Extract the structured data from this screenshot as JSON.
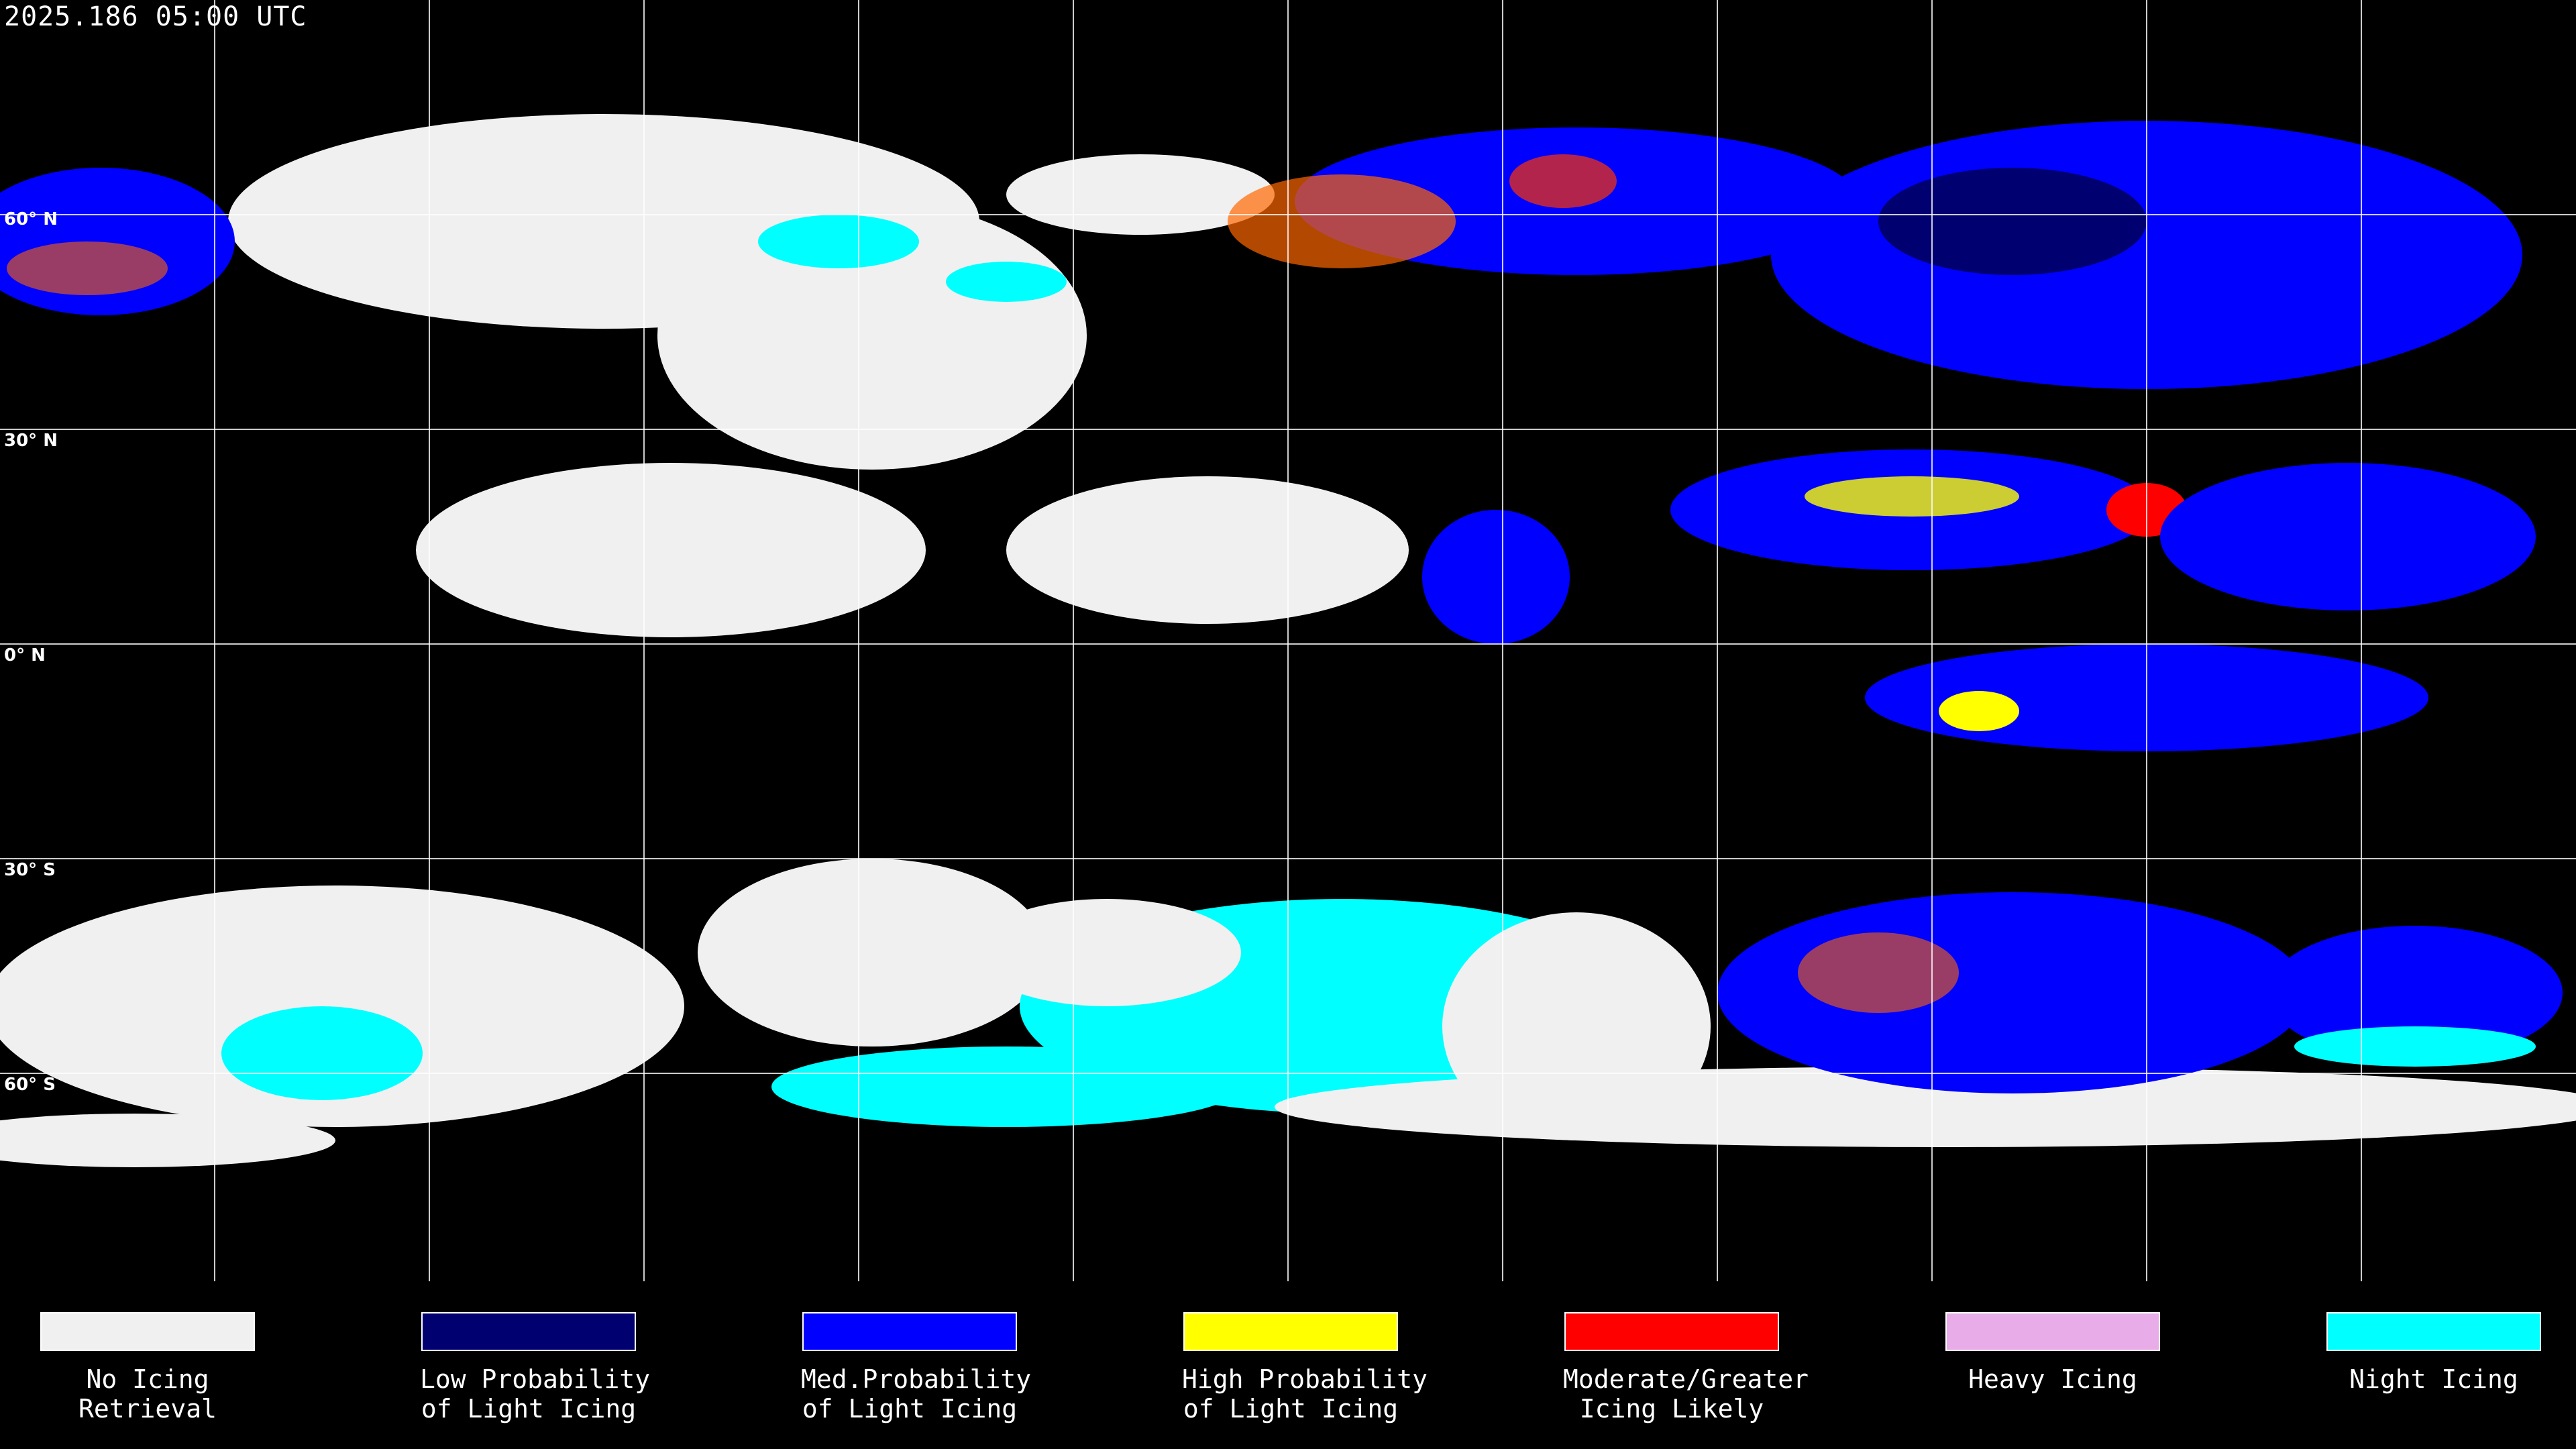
{
  "header": {
    "timestamp": "2025.186 05:00 UTC"
  },
  "map": {
    "latitude_labels": [
      "60° N",
      "30° N",
      "0° N",
      "30° S",
      "60° S"
    ],
    "grid": true,
    "colors": {
      "background": "#000000",
      "grid": "#ffffff"
    }
  },
  "legend": [
    {
      "line1": "No Icing",
      "line2": "Retrieval",
      "color": "#f0f0f0"
    },
    {
      "line1": "Low Probability",
      "line2": "of Light Icing",
      "color": "#000070"
    },
    {
      "line1": "Med.Probability",
      "line2": "of Light Icing",
      "color": "#0000ff"
    },
    {
      "line1": "High Probability",
      "line2": "of Light Icing",
      "color": "#ffff00"
    },
    {
      "line1": "Moderate/Greater",
      "line2": "Icing Likely",
      "color": "#ff0000"
    },
    {
      "line1": "Heavy Icing",
      "line2": "",
      "color": "#e8ace8"
    },
    {
      "line1": "Night Icing",
      "line2": "",
      "color": "#00ffff"
    }
  ]
}
